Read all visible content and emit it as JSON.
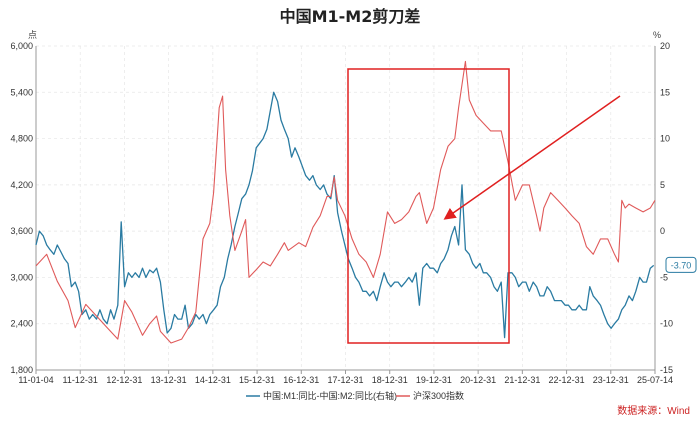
{
  "chart_data": {
    "type": "line",
    "title": "中国M1-M2剪刀差",
    "left_axis_unit": "点",
    "right_axis_unit": "%",
    "y_left": {
      "min": 1800,
      "max": 6000,
      "ticks": [
        "1,800",
        "2,400",
        "3,000",
        "3,600",
        "4,200",
        "4,800",
        "5,400",
        "6,000"
      ]
    },
    "y_right": {
      "min": -15,
      "max": 20,
      "ticks": [
        "-15",
        "-10",
        "-5",
        "0",
        "5",
        "10",
        "15",
        "20"
      ]
    },
    "x_ticks": [
      "11-01-04",
      "11-12-31",
      "12-12-31",
      "13-12-31",
      "14-12-31",
      "15-12-31",
      "16-12-31",
      "17-12-31",
      "18-12-31",
      "19-12-31",
      "20-12-31",
      "21-12-31",
      "22-12-31",
      "23-12-31",
      "25-07-14"
    ],
    "series": [
      {
        "name": "中国:M1:同比-中国:M2:同比(右轴)",
        "axis": "right",
        "color": "#2a7ba2",
        "points": [
          [
            2011.0,
            -1.5
          ],
          [
            2011.08,
            0.0
          ],
          [
            2011.17,
            -0.5
          ],
          [
            2011.25,
            -1.5
          ],
          [
            2011.33,
            -2.0
          ],
          [
            2011.42,
            -2.5
          ],
          [
            2011.5,
            -1.5
          ],
          [
            2011.58,
            -2.2
          ],
          [
            2011.67,
            -3.0
          ],
          [
            2011.75,
            -3.5
          ],
          [
            2011.83,
            -6.0
          ],
          [
            2011.92,
            -5.5
          ],
          [
            2012.0,
            -6.5
          ],
          [
            2012.08,
            -9.0
          ],
          [
            2012.17,
            -8.5
          ],
          [
            2012.25,
            -9.5
          ],
          [
            2012.33,
            -9.0
          ],
          [
            2012.42,
            -9.5
          ],
          [
            2012.5,
            -8.5
          ],
          [
            2012.58,
            -9.5
          ],
          [
            2012.67,
            -10.0
          ],
          [
            2012.75,
            -8.5
          ],
          [
            2012.83,
            -9.5
          ],
          [
            2012.92,
            -8.0
          ],
          [
            2013.0,
            1.0
          ],
          [
            2013.08,
            -6.0
          ],
          [
            2013.17,
            -4.5
          ],
          [
            2013.25,
            -5.0
          ],
          [
            2013.33,
            -4.5
          ],
          [
            2013.42,
            -5.0
          ],
          [
            2013.5,
            -4.0
          ],
          [
            2013.58,
            -5.0
          ],
          [
            2013.67,
            -4.2
          ],
          [
            2013.75,
            -4.5
          ],
          [
            2013.83,
            -4.0
          ],
          [
            2013.92,
            -5.5
          ],
          [
            2014.0,
            -8.5
          ],
          [
            2014.08,
            -11.0
          ],
          [
            2014.17,
            -10.5
          ],
          [
            2014.25,
            -9.0
          ],
          [
            2014.33,
            -9.5
          ],
          [
            2014.42,
            -9.5
          ],
          [
            2014.5,
            -8.0
          ],
          [
            2014.58,
            -10.5
          ],
          [
            2014.67,
            -10.0
          ],
          [
            2014.75,
            -9.0
          ],
          [
            2014.83,
            -9.5
          ],
          [
            2014.92,
            -9.0
          ],
          [
            2015.0,
            -10.0
          ],
          [
            2015.08,
            -9.0
          ],
          [
            2015.17,
            -8.5
          ],
          [
            2015.25,
            -8.0
          ],
          [
            2015.33,
            -6.0
          ],
          [
            2015.42,
            -5.0
          ],
          [
            2015.5,
            -3.0
          ],
          [
            2015.58,
            -1.5
          ],
          [
            2015.67,
            0.5
          ],
          [
            2015.75,
            2.0
          ],
          [
            2015.83,
            3.5
          ],
          [
            2015.92,
            4.0
          ],
          [
            2016.0,
            5.0
          ],
          [
            2016.08,
            6.5
          ],
          [
            2016.17,
            9.0
          ],
          [
            2016.25,
            9.5
          ],
          [
            2016.33,
            10.0
          ],
          [
            2016.42,
            11.0
          ],
          [
            2016.5,
            13.0
          ],
          [
            2016.58,
            15.0
          ],
          [
            2016.67,
            14.0
          ],
          [
            2016.75,
            12.0
          ],
          [
            2016.83,
            11.0
          ],
          [
            2016.92,
            10.0
          ],
          [
            2017.0,
            8.0
          ],
          [
            2017.08,
            9.0
          ],
          [
            2017.17,
            8.0
          ],
          [
            2017.25,
            7.0
          ],
          [
            2017.33,
            6.0
          ],
          [
            2017.42,
            5.5
          ],
          [
            2017.5,
            6.0
          ],
          [
            2017.58,
            5.0
          ],
          [
            2017.67,
            4.5
          ],
          [
            2017.75,
            5.0
          ],
          [
            2017.83,
            4.0
          ],
          [
            2017.92,
            3.5
          ],
          [
            2018.0,
            6.0
          ],
          [
            2018.08,
            2.0
          ],
          [
            2018.17,
            0.0
          ],
          [
            2018.25,
            -1.5
          ],
          [
            2018.33,
            -3.0
          ],
          [
            2018.42,
            -4.0
          ],
          [
            2018.5,
            -5.0
          ],
          [
            2018.58,
            -5.5
          ],
          [
            2018.67,
            -6.5
          ],
          [
            2018.75,
            -6.5
          ],
          [
            2018.83,
            -7.0
          ],
          [
            2018.92,
            -6.5
          ],
          [
            2019.0,
            -7.5
          ],
          [
            2019.08,
            -6.0
          ],
          [
            2019.17,
            -4.5
          ],
          [
            2019.25,
            -5.5
          ],
          [
            2019.33,
            -6.0
          ],
          [
            2019.42,
            -5.5
          ],
          [
            2019.5,
            -5.5
          ],
          [
            2019.58,
            -6.0
          ],
          [
            2019.67,
            -5.5
          ],
          [
            2019.75,
            -5.0
          ],
          [
            2019.83,
            -5.5
          ],
          [
            2019.92,
            -4.5
          ],
          [
            2020.0,
            -8.0
          ],
          [
            2020.08,
            -4.0
          ],
          [
            2020.17,
            -3.5
          ],
          [
            2020.25,
            -4.0
          ],
          [
            2020.33,
            -4.0
          ],
          [
            2020.42,
            -4.5
          ],
          [
            2020.5,
            -3.5
          ],
          [
            2020.58,
            -3.0
          ],
          [
            2020.67,
            -2.0
          ],
          [
            2020.75,
            -0.5
          ],
          [
            2020.83,
            0.5
          ],
          [
            2020.92,
            -1.5
          ],
          [
            2021.0,
            5.0
          ],
          [
            2021.08,
            -2.0
          ],
          [
            2021.17,
            -2.5
          ],
          [
            2021.25,
            -3.5
          ],
          [
            2021.33,
            -4.0
          ],
          [
            2021.42,
            -3.5
          ],
          [
            2021.5,
            -4.5
          ],
          [
            2021.58,
            -4.5
          ],
          [
            2021.67,
            -5.0
          ],
          [
            2021.75,
            -6.0
          ],
          [
            2021.83,
            -6.5
          ],
          [
            2021.92,
            -5.5
          ],
          [
            2022.0,
            -11.5
          ],
          [
            2022.08,
            -4.5
          ],
          [
            2022.17,
            -4.5
          ],
          [
            2022.25,
            -5.0
          ],
          [
            2022.33,
            -6.0
          ],
          [
            2022.42,
            -5.5
          ],
          [
            2022.5,
            -5.5
          ],
          [
            2022.58,
            -6.5
          ],
          [
            2022.67,
            -5.5
          ],
          [
            2022.75,
            -6.0
          ],
          [
            2022.83,
            -7.0
          ],
          [
            2022.92,
            -7.0
          ],
          [
            2023.0,
            -6.0
          ],
          [
            2023.08,
            -6.5
          ],
          [
            2023.17,
            -7.5
          ],
          [
            2023.25,
            -7.5
          ],
          [
            2023.33,
            -7.5
          ],
          [
            2023.42,
            -8.0
          ],
          [
            2023.5,
            -8.0
          ],
          [
            2023.58,
            -8.5
          ],
          [
            2023.67,
            -8.5
          ],
          [
            2023.75,
            -8.0
          ],
          [
            2023.83,
            -8.5
          ],
          [
            2023.92,
            -8.5
          ],
          [
            2024.0,
            -6.0
          ],
          [
            2024.08,
            -7.0
          ],
          [
            2024.17,
            -7.5
          ],
          [
            2024.25,
            -8.0
          ],
          [
            2024.33,
            -9.0
          ],
          [
            2024.42,
            -10.0
          ],
          [
            2024.5,
            -10.5
          ],
          [
            2024.58,
            -10.0
          ],
          [
            2024.67,
            -9.5
          ],
          [
            2024.75,
            -8.5
          ],
          [
            2024.83,
            -8.0
          ],
          [
            2024.92,
            -7.0
          ],
          [
            2025.0,
            -7.5
          ],
          [
            2025.08,
            -6.5
          ],
          [
            2025.17,
            -5.0
          ],
          [
            2025.25,
            -5.5
          ],
          [
            2025.33,
            -5.5
          ],
          [
            2025.42,
            -4.0
          ],
          [
            2025.5,
            -3.7
          ]
        ]
      },
      {
        "name": "沪深300指数",
        "axis": "left",
        "color": "#e05a5a",
        "points": [
          [
            2011.0,
            3150
          ],
          [
            2011.25,
            3300
          ],
          [
            2011.5,
            2950
          ],
          [
            2011.75,
            2700
          ],
          [
            2011.92,
            2350
          ],
          [
            2012.17,
            2650
          ],
          [
            2012.42,
            2500
          ],
          [
            2012.67,
            2350
          ],
          [
            2012.92,
            2200
          ],
          [
            2013.08,
            2700
          ],
          [
            2013.25,
            2550
          ],
          [
            2013.5,
            2250
          ],
          [
            2013.67,
            2400
          ],
          [
            2013.83,
            2500
          ],
          [
            2013.92,
            2300
          ],
          [
            2014.17,
            2150
          ],
          [
            2014.42,
            2200
          ],
          [
            2014.58,
            2350
          ],
          [
            2014.75,
            2550
          ],
          [
            2014.92,
            3500
          ],
          [
            2015.0,
            3600
          ],
          [
            2015.08,
            3700
          ],
          [
            2015.17,
            4100
          ],
          [
            2015.3,
            5200
          ],
          [
            2015.38,
            5350
          ],
          [
            2015.45,
            4400
          ],
          [
            2015.55,
            3800
          ],
          [
            2015.67,
            3350
          ],
          [
            2015.83,
            3600
          ],
          [
            2015.92,
            3750
          ],
          [
            2016.0,
            3000
          ],
          [
            2016.17,
            3100
          ],
          [
            2016.33,
            3200
          ],
          [
            2016.5,
            3150
          ],
          [
            2016.67,
            3300
          ],
          [
            2016.83,
            3450
          ],
          [
            2016.92,
            3350
          ],
          [
            2017.17,
            3450
          ],
          [
            2017.33,
            3400
          ],
          [
            2017.5,
            3650
          ],
          [
            2017.67,
            3800
          ],
          [
            2017.83,
            4050
          ],
          [
            2017.92,
            4050
          ],
          [
            2018.0,
            4300
          ],
          [
            2018.08,
            4000
          ],
          [
            2018.25,
            3800
          ],
          [
            2018.42,
            3500
          ],
          [
            2018.58,
            3300
          ],
          [
            2018.75,
            3200
          ],
          [
            2018.92,
            3000
          ],
          [
            2019.08,
            3300
          ],
          [
            2019.25,
            3850
          ],
          [
            2019.42,
            3700
          ],
          [
            2019.58,
            3750
          ],
          [
            2019.75,
            3850
          ],
          [
            2019.92,
            4050
          ],
          [
            2020.0,
            4100
          ],
          [
            2020.17,
            3700
          ],
          [
            2020.33,
            3900
          ],
          [
            2020.5,
            4400
          ],
          [
            2020.67,
            4700
          ],
          [
            2020.83,
            4800
          ],
          [
            2020.92,
            5200
          ],
          [
            2021.08,
            5800
          ],
          [
            2021.17,
            5300
          ],
          [
            2021.33,
            5100
          ],
          [
            2021.5,
            5000
          ],
          [
            2021.67,
            4900
          ],
          [
            2021.83,
            4900
          ],
          [
            2021.92,
            4900
          ],
          [
            2022.08,
            4500
          ],
          [
            2022.25,
            4000
          ],
          [
            2022.42,
            4200
          ],
          [
            2022.58,
            4200
          ],
          [
            2022.75,
            3800
          ],
          [
            2022.83,
            3600
          ],
          [
            2022.92,
            3900
          ],
          [
            2023.08,
            4100
          ],
          [
            2023.25,
            4000
          ],
          [
            2023.42,
            3900
          ],
          [
            2023.58,
            3800
          ],
          [
            2023.75,
            3700
          ],
          [
            2023.92,
            3400
          ],
          [
            2024.08,
            3300
          ],
          [
            2024.25,
            3500
          ],
          [
            2024.42,
            3500
          ],
          [
            2024.58,
            3300
          ],
          [
            2024.67,
            3200
          ],
          [
            2024.75,
            4000
          ],
          [
            2024.83,
            3900
          ],
          [
            2024.92,
            3950
          ],
          [
            2025.08,
            3900
          ],
          [
            2025.25,
            3850
          ],
          [
            2025.42,
            3900
          ],
          [
            2025.53,
            4000
          ]
        ]
      }
    ],
    "end_label": "-3.70",
    "legend": [
      "中国:M1:同比-中国:M2:同比(右轴)",
      "沪深300指数"
    ],
    "legend_position": "bottom",
    "grid": true
  },
  "source_text": "数据来源：Wind",
  "colors": {
    "highlight_box": "#e02020",
    "arrow": "#e02020",
    "grid": "#e6e6e6",
    "axis": "#999999"
  }
}
